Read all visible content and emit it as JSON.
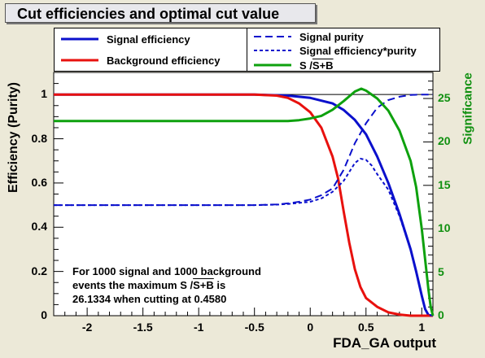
{
  "title": "Cut efficiencies and optimal cut value",
  "legend_left": {
    "items": [
      {
        "label": "Signal efficiency",
        "color": "#0b10cc",
        "style": "solid"
      },
      {
        "label": "Background efficiency",
        "color": "#e8110e",
        "style": "solid"
      }
    ]
  },
  "legend_right": {
    "items": [
      {
        "label": "Signal purity",
        "color": "#0b10cc",
        "style": "dashed"
      },
      {
        "label": "Signal efficiency*purity",
        "color": "#0b10cc",
        "style": "dotted"
      },
      {
        "label_prefix": "S /",
        "label_sqrt": "S+B",
        "color": "#0ea10e",
        "style": "solid"
      }
    ]
  },
  "note": {
    "line1": "For 1000 signal and 1000 background",
    "line2_prefix": "events the maximum S /",
    "line2_sqrt": "S+B",
    "line2_suffix": " is",
    "line3": "26.1334 when cutting at 0.4580"
  },
  "chart_data": {
    "type": "line",
    "xlabel": "FDA_GA output",
    "ylabel": "Efficiency (Purity)",
    "y2label": "Significance",
    "xlim": [
      -2.3,
      1.1
    ],
    "ylim": [
      0,
      1.1
    ],
    "y2lim": [
      0,
      28
    ],
    "x_ticks": [
      "-2",
      "-1.5",
      "-1",
      "-0.5",
      "0",
      "0.5",
      "1"
    ],
    "y_ticks": [
      "0",
      "0.2",
      "0.4",
      "0.6",
      "0.8",
      "1"
    ],
    "y2_ticks": [
      "0",
      "5",
      "10",
      "15",
      "20",
      "25"
    ],
    "series": [
      {
        "name": "Signal efficiency",
        "color": "#0b10cc",
        "axis": "left",
        "style": "solid",
        "points": [
          [
            -2.3,
            1.0
          ],
          [
            -0.5,
            1.0
          ],
          [
            -0.2,
            0.995
          ],
          [
            0.0,
            0.985
          ],
          [
            0.2,
            0.96
          ],
          [
            0.3,
            0.93
          ],
          [
            0.4,
            0.885
          ],
          [
            0.5,
            0.82
          ],
          [
            0.6,
            0.72
          ],
          [
            0.7,
            0.6
          ],
          [
            0.8,
            0.46
          ],
          [
            0.9,
            0.3
          ],
          [
            0.95,
            0.2
          ],
          [
            1.0,
            0.09
          ],
          [
            1.03,
            0.03
          ],
          [
            1.06,
            0.003
          ],
          [
            1.1,
            0.0
          ]
        ]
      },
      {
        "name": "Background efficiency",
        "color": "#e8110e",
        "axis": "left",
        "style": "solid",
        "points": [
          [
            -2.3,
            1.0
          ],
          [
            -0.5,
            1.0
          ],
          [
            -0.3,
            0.995
          ],
          [
            -0.2,
            0.985
          ],
          [
            -0.1,
            0.96
          ],
          [
            0.0,
            0.92
          ],
          [
            0.1,
            0.85
          ],
          [
            0.2,
            0.72
          ],
          [
            0.25,
            0.62
          ],
          [
            0.3,
            0.47
          ],
          [
            0.35,
            0.33
          ],
          [
            0.4,
            0.21
          ],
          [
            0.45,
            0.13
          ],
          [
            0.5,
            0.08
          ],
          [
            0.6,
            0.04
          ],
          [
            0.7,
            0.015
          ],
          [
            0.8,
            0.005
          ],
          [
            0.9,
            0.0
          ],
          [
            1.1,
            0.0
          ]
        ]
      },
      {
        "name": "Signal purity",
        "color": "#0b10cc",
        "axis": "left",
        "style": "dashed",
        "points": [
          [
            -2.3,
            0.5
          ],
          [
            -0.5,
            0.5
          ],
          [
            -0.3,
            0.503
          ],
          [
            -0.2,
            0.508
          ],
          [
            -0.1,
            0.515
          ],
          [
            0.0,
            0.525
          ],
          [
            0.1,
            0.545
          ],
          [
            0.2,
            0.575
          ],
          [
            0.3,
            0.66
          ],
          [
            0.4,
            0.78
          ],
          [
            0.5,
            0.87
          ],
          [
            0.6,
            0.94
          ],
          [
            0.7,
            0.975
          ],
          [
            0.8,
            0.99
          ],
          [
            0.9,
            0.998
          ],
          [
            1.0,
            1.0
          ],
          [
            1.1,
            1.0
          ]
        ]
      },
      {
        "name": "Signal efficiency*purity",
        "color": "#0b10cc",
        "axis": "left",
        "style": "dotted",
        "points": [
          [
            -2.3,
            0.5
          ],
          [
            -0.5,
            0.5
          ],
          [
            -0.3,
            0.502
          ],
          [
            -0.2,
            0.505
          ],
          [
            -0.1,
            0.51
          ],
          [
            0.0,
            0.515
          ],
          [
            0.1,
            0.53
          ],
          [
            0.2,
            0.56
          ],
          [
            0.3,
            0.61
          ],
          [
            0.4,
            0.69
          ],
          [
            0.45,
            0.71
          ],
          [
            0.5,
            0.705
          ],
          [
            0.55,
            0.68
          ],
          [
            0.6,
            0.64
          ],
          [
            0.7,
            0.57
          ],
          [
            0.8,
            0.45
          ],
          [
            0.9,
            0.3
          ],
          [
            0.95,
            0.2
          ],
          [
            1.0,
            0.09
          ],
          [
            1.03,
            0.03
          ],
          [
            1.06,
            0.003
          ],
          [
            1.1,
            0.0
          ]
        ]
      },
      {
        "name": "S/sqrt(S+B)",
        "color": "#0ea10e",
        "axis": "right",
        "style": "solid",
        "points": [
          [
            -2.3,
            22.4
          ],
          [
            -0.4,
            22.4
          ],
          [
            -0.2,
            22.4
          ],
          [
            -0.1,
            22.5
          ],
          [
            0.0,
            22.7
          ],
          [
            0.1,
            23.0
          ],
          [
            0.2,
            23.7
          ],
          [
            0.3,
            24.7
          ],
          [
            0.4,
            25.8
          ],
          [
            0.458,
            26.13
          ],
          [
            0.5,
            25.9
          ],
          [
            0.6,
            25.0
          ],
          [
            0.7,
            23.6
          ],
          [
            0.8,
            21.3
          ],
          [
            0.9,
            17.8
          ],
          [
            0.95,
            14.8
          ],
          [
            1.0,
            10.0
          ],
          [
            1.03,
            6.5
          ],
          [
            1.06,
            3.0
          ],
          [
            1.08,
            1.0
          ],
          [
            1.1,
            0.0
          ]
        ]
      }
    ]
  }
}
